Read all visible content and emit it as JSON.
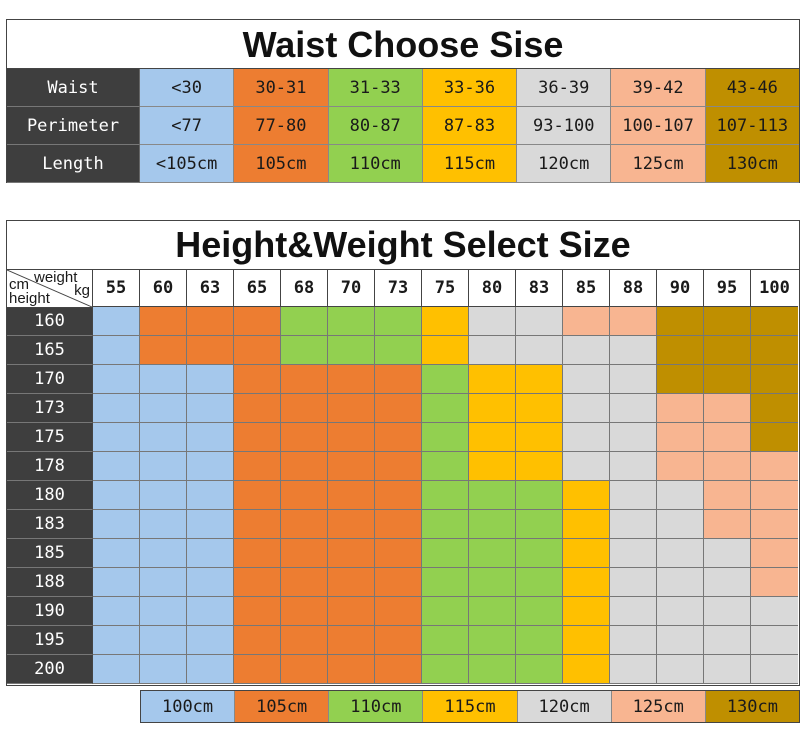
{
  "waist_chart": {
    "title": "Waist Choose Sise",
    "rows": [
      {
        "label": "Waist",
        "values": [
          "<30",
          "30-31",
          "31-33",
          "33-36",
          "36-39",
          "39-42",
          "43-46"
        ]
      },
      {
        "label": "Perimeter",
        "values": [
          "<77",
          "77-80",
          "80-87",
          "87-83",
          "93-100",
          "100-107",
          "107-113"
        ]
      },
      {
        "label": "Length",
        "values": [
          "<105cm",
          "105cm",
          "110cm",
          "115cm",
          "120cm",
          "125cm",
          "130cm"
        ]
      }
    ]
  },
  "size_colors": [
    "#a5c8ec",
    "#ed7d31",
    "#92d050",
    "#ffc000",
    "#d9d9d9",
    "#f8b591",
    "#bf8f00"
  ],
  "size_grid": {
    "title": "Height&Weight Select Size",
    "corner": {
      "unit_weight": "weight",
      "unit_kg": "kg",
      "unit_cm": "cm",
      "unit_height": "height"
    },
    "weights": [
      "55",
      "60",
      "63",
      "65",
      "68",
      "70",
      "73",
      "75",
      "80",
      "83",
      "85",
      "88",
      "90",
      "95",
      "100"
    ],
    "heights": [
      "160",
      "165",
      "170",
      "173",
      "175",
      "178",
      "180",
      "183",
      "185",
      "188",
      "190",
      "195",
      "200"
    ],
    "size_index_rows": [
      [
        0,
        1,
        1,
        1,
        2,
        2,
        2,
        3,
        4,
        4,
        5,
        5,
        6,
        6,
        6
      ],
      [
        0,
        1,
        1,
        1,
        2,
        2,
        2,
        3,
        4,
        4,
        4,
        4,
        6,
        6,
        6
      ],
      [
        0,
        0,
        0,
        1,
        1,
        1,
        1,
        2,
        3,
        3,
        4,
        4,
        6,
        6,
        6
      ],
      [
        0,
        0,
        0,
        1,
        1,
        1,
        1,
        2,
        3,
        3,
        4,
        4,
        5,
        5,
        6
      ],
      [
        0,
        0,
        0,
        1,
        1,
        1,
        1,
        2,
        3,
        3,
        4,
        4,
        5,
        5,
        6
      ],
      [
        0,
        0,
        0,
        1,
        1,
        1,
        1,
        2,
        3,
        3,
        4,
        4,
        5,
        5,
        5
      ],
      [
        0,
        0,
        0,
        1,
        1,
        1,
        1,
        2,
        2,
        2,
        3,
        4,
        4,
        5,
        5
      ],
      [
        0,
        0,
        0,
        1,
        1,
        1,
        1,
        2,
        2,
        2,
        3,
        4,
        4,
        5,
        5
      ],
      [
        0,
        0,
        0,
        1,
        1,
        1,
        1,
        2,
        2,
        2,
        3,
        4,
        4,
        4,
        5
      ],
      [
        0,
        0,
        0,
        1,
        1,
        1,
        1,
        2,
        2,
        2,
        3,
        4,
        4,
        4,
        5
      ],
      [
        0,
        0,
        0,
        1,
        1,
        1,
        1,
        2,
        2,
        2,
        3,
        4,
        4,
        4,
        4
      ],
      [
        0,
        0,
        0,
        1,
        1,
        1,
        1,
        2,
        2,
        2,
        3,
        4,
        4,
        4,
        4
      ],
      [
        0,
        0,
        0,
        1,
        1,
        1,
        1,
        2,
        2,
        2,
        3,
        4,
        4,
        4,
        4
      ]
    ]
  },
  "legend": [
    "100cm",
    "105cm",
    "110cm",
    "115cm",
    "120cm",
    "125cm",
    "130cm"
  ]
}
